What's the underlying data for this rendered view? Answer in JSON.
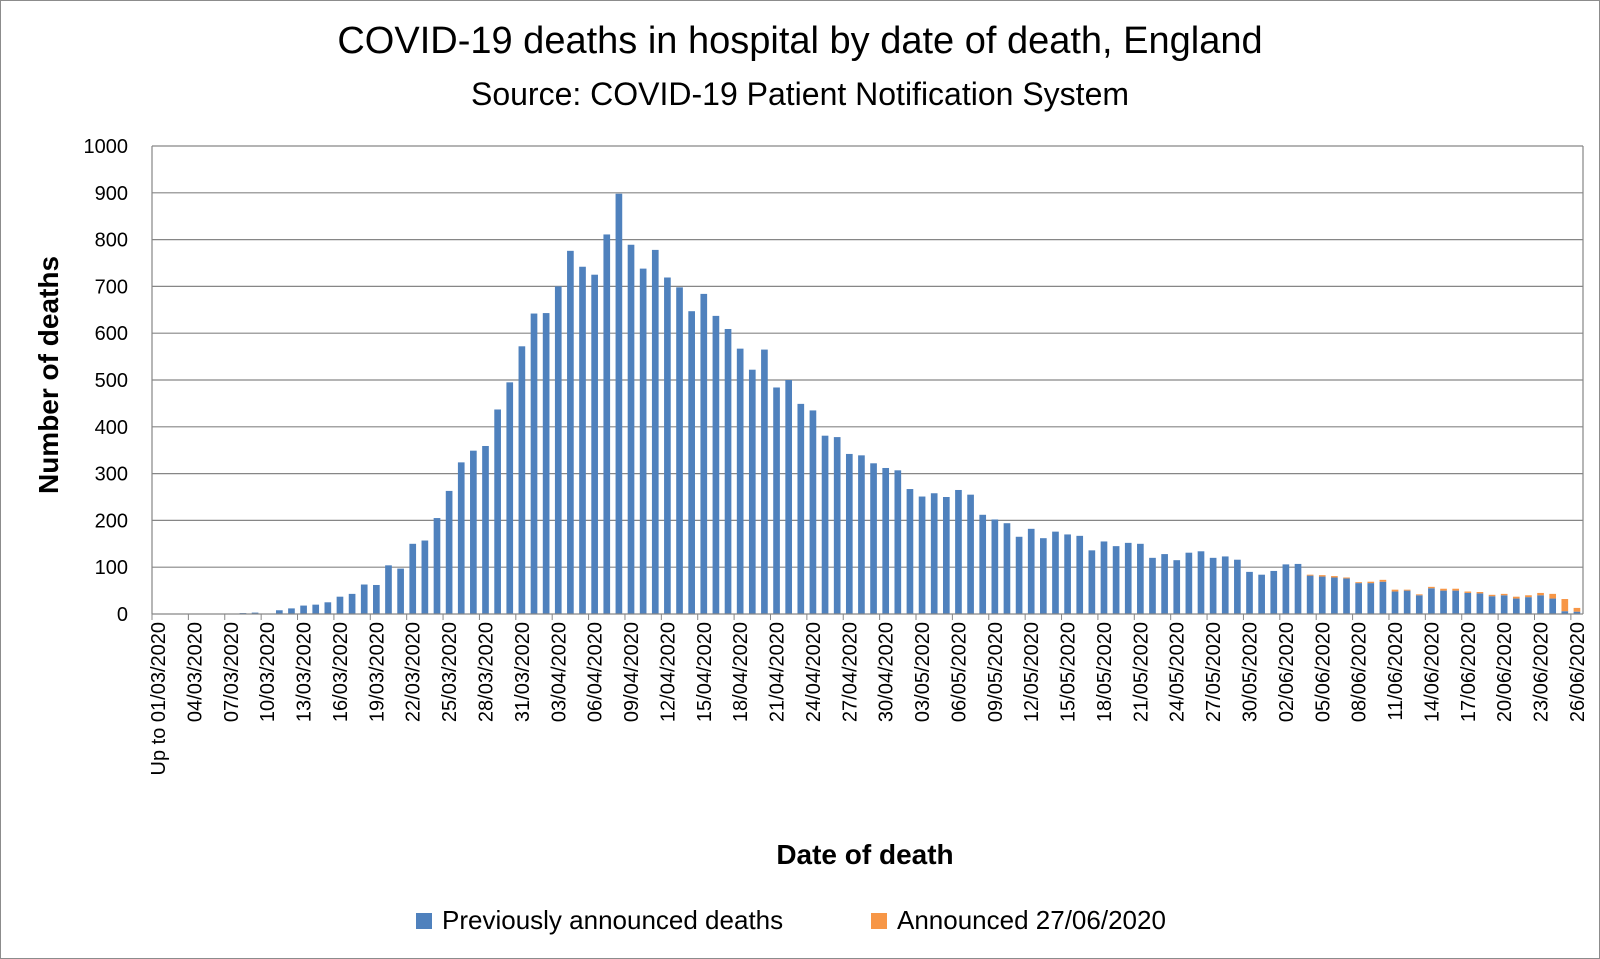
{
  "chart_data": {
    "type": "bar",
    "stacked": true,
    "title": "COVID-19 deaths in hospital by date of death, England",
    "subtitle": "Source: COVID-19 Patient Notification System",
    "xlabel": "Date of death",
    "ylabel": "Number of deaths",
    "ylim": [
      0,
      1000
    ],
    "yticks": [
      0,
      100,
      200,
      300,
      400,
      500,
      600,
      700,
      800,
      900,
      1000
    ],
    "grid": true,
    "legend_position": "bottom",
    "categories": [
      "Up to 01/03/2020",
      "02/03/2020",
      "03/03/2020",
      "04/03/2020",
      "05/03/2020",
      "06/03/2020",
      "07/03/2020",
      "08/03/2020",
      "09/03/2020",
      "10/03/2020",
      "11/03/2020",
      "12/03/2020",
      "13/03/2020",
      "14/03/2020",
      "15/03/2020",
      "16/03/2020",
      "17/03/2020",
      "18/03/2020",
      "19/03/2020",
      "20/03/2020",
      "21/03/2020",
      "22/03/2020",
      "23/03/2020",
      "24/03/2020",
      "25/03/2020",
      "26/03/2020",
      "27/03/2020",
      "28/03/2020",
      "29/03/2020",
      "30/03/2020",
      "31/03/2020",
      "01/04/2020",
      "02/04/2020",
      "03/04/2020",
      "04/04/2020",
      "05/04/2020",
      "06/04/2020",
      "07/04/2020",
      "08/04/2020",
      "09/04/2020",
      "10/04/2020",
      "11/04/2020",
      "12/04/2020",
      "13/04/2020",
      "14/04/2020",
      "15/04/2020",
      "16/04/2020",
      "17/04/2020",
      "18/04/2020",
      "19/04/2020",
      "20/04/2020",
      "21/04/2020",
      "22/04/2020",
      "23/04/2020",
      "24/04/2020",
      "25/04/2020",
      "26/04/2020",
      "27/04/2020",
      "28/04/2020",
      "29/04/2020",
      "30/04/2020",
      "01/05/2020",
      "02/05/2020",
      "03/05/2020",
      "04/05/2020",
      "05/05/2020",
      "06/05/2020",
      "07/05/2020",
      "08/05/2020",
      "09/05/2020",
      "10/05/2020",
      "11/05/2020",
      "12/05/2020",
      "13/05/2020",
      "14/05/2020",
      "15/05/2020",
      "16/05/2020",
      "17/05/2020",
      "18/05/2020",
      "19/05/2020",
      "20/05/2020",
      "21/05/2020",
      "22/05/2020",
      "23/05/2020",
      "24/05/2020",
      "25/05/2020",
      "26/05/2020",
      "27/05/2020",
      "28/05/2020",
      "29/05/2020",
      "30/05/2020",
      "31/05/2020",
      "01/06/2020",
      "02/06/2020",
      "03/06/2020",
      "04/06/2020",
      "05/06/2020",
      "06/06/2020",
      "07/06/2020",
      "08/06/2020",
      "09/06/2020",
      "10/06/2020",
      "11/06/2020",
      "12/06/2020",
      "13/06/2020",
      "14/06/2020",
      "15/06/2020",
      "16/06/2020",
      "17/06/2020",
      "18/06/2020",
      "19/06/2020",
      "20/06/2020",
      "21/06/2020",
      "22/06/2020",
      "23/06/2020",
      "24/06/2020",
      "25/06/2020",
      "26/06/2020"
    ],
    "tick_labels_shown": [
      "Up to 01/03/2020",
      "04/03/2020",
      "07/03/2020",
      "10/03/2020",
      "13/03/2020",
      "16/03/2020",
      "19/03/2020",
      "22/03/2020",
      "25/03/2020",
      "28/03/2020",
      "31/03/2020",
      "03/04/2020",
      "06/04/2020",
      "09/04/2020",
      "12/04/2020",
      "15/04/2020",
      "18/04/2020",
      "21/04/2020",
      "24/04/2020",
      "27/04/2020",
      "30/04/2020",
      "03/05/2020",
      "06/05/2020",
      "09/05/2020",
      "12/05/2020",
      "15/05/2020",
      "18/05/2020",
      "21/05/2020",
      "24/05/2020",
      "27/05/2020",
      "30/05/2020",
      "02/06/2020",
      "05/06/2020",
      "08/06/2020",
      "11/06/2020",
      "14/06/2020",
      "17/06/2020",
      "20/06/2020",
      "23/06/2020",
      "26/06/2020"
    ],
    "series": [
      {
        "name": "Previously announced deaths",
        "color": "#4f81bd",
        "values": [
          0,
          0,
          0,
          0,
          0,
          0,
          0,
          2,
          3,
          1,
          8,
          12,
          18,
          20,
          25,
          37,
          43,
          63,
          62,
          104,
          97,
          150,
          157,
          205,
          263,
          324,
          349,
          359,
          437,
          495,
          572,
          642,
          643,
          700,
          776,
          742,
          725,
          811,
          898,
          789,
          738,
          778,
          719,
          698,
          647,
          684,
          637,
          609,
          567,
          522,
          565,
          484,
          500,
          449,
          435,
          381,
          378,
          342,
          339,
          322,
          312,
          307,
          267,
          251,
          258,
          250,
          265,
          255,
          212,
          202,
          194,
          165,
          182,
          162,
          176,
          170,
          167,
          136,
          155,
          145,
          152,
          150,
          120,
          128,
          115,
          131,
          134,
          120,
          123,
          116,
          90,
          84,
          92,
          106,
          107,
          82,
          80,
          78,
          76,
          66,
          66,
          69,
          48,
          50,
          40,
          55,
          50,
          50,
          45,
          44,
          38,
          40,
          33,
          36,
          40,
          33,
          6,
          5
        ],
        "unit": "deaths"
      },
      {
        "name": "Announced 27/06/2020",
        "color": "#f79646",
        "values": [
          0,
          0,
          0,
          0,
          0,
          0,
          0,
          0,
          0,
          0,
          0,
          0,
          0,
          0,
          0,
          0,
          0,
          0,
          0,
          0,
          0,
          0,
          0,
          0,
          0,
          0,
          0,
          0,
          0,
          0,
          0,
          0,
          0,
          0,
          0,
          0,
          0,
          0,
          0,
          0,
          0,
          0,
          0,
          0,
          0,
          0,
          0,
          0,
          0,
          0,
          0,
          0,
          0,
          0,
          0,
          0,
          0,
          0,
          0,
          0,
          0,
          0,
          0,
          0,
          0,
          0,
          0,
          0,
          0,
          0,
          0,
          0,
          0,
          0,
          0,
          0,
          0,
          0,
          0,
          0,
          0,
          0,
          0,
          0,
          0,
          0,
          0,
          0,
          0,
          0,
          0,
          0,
          0,
          0,
          0,
          2,
          3,
          3,
          2,
          2,
          3,
          4,
          4,
          2,
          2,
          3,
          4,
          4,
          3,
          3,
          3,
          3,
          4,
          4,
          5,
          10,
          26,
          8
        ]
      }
    ]
  }
}
